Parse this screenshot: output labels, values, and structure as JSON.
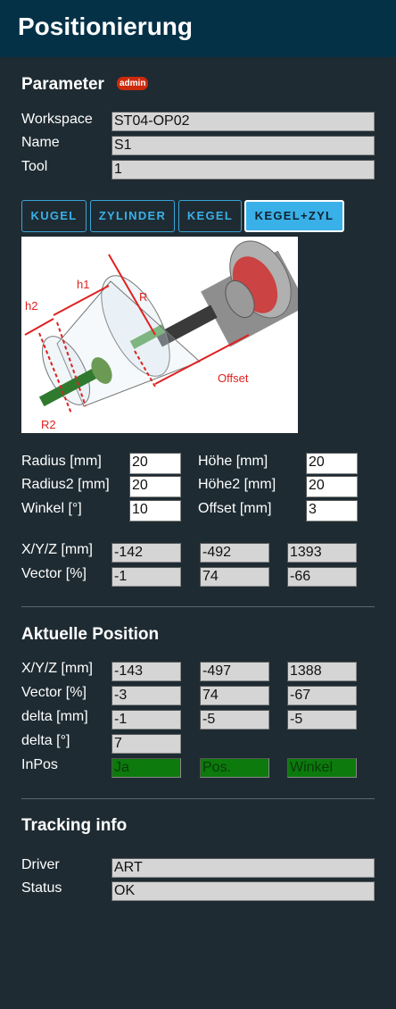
{
  "header": {
    "title": "Positionierung"
  },
  "parameter": {
    "title": "Parameter",
    "badge": "admin",
    "workspace_label": "Workspace",
    "workspace_value": "ST04-OP02",
    "name_label": "Name",
    "name_value": "S1",
    "tool_label": "Tool",
    "tool_value": "1"
  },
  "shape_buttons": [
    "KUGEL",
    "ZYLINDER",
    "KEGEL",
    "KEGEL+ZYL"
  ],
  "active_shape": "KEGEL+ZYL",
  "figure": {
    "labels": {
      "h1": "h1",
      "h2": "h2",
      "r": "R",
      "r2": "R2",
      "offset": "Offset"
    }
  },
  "dimensions": {
    "radius_label": "Radius [mm]",
    "radius_value": "20",
    "hoehe_label": "Höhe [mm]",
    "hoehe_value": "20",
    "radius2_label": "Radius2 [mm]",
    "radius2_value": "20",
    "hoehe2_label": "Höhe2 [mm]",
    "hoehe2_value": "20",
    "winkel_label": "Winkel [°]",
    "winkel_value": "10",
    "offset_label": "Offset [mm]",
    "offset_value": "3"
  },
  "target": {
    "xyz_label": "X/Y/Z [mm]",
    "xyz": [
      "-142",
      "-492",
      "1393"
    ],
    "vector_label": "Vector [%]",
    "vector": [
      "-1",
      "74",
      "-66"
    ]
  },
  "aktuell": {
    "title": "Aktuelle Position",
    "xyz_label": "X/Y/Z [mm]",
    "xyz": [
      "-143",
      "-497",
      "1388"
    ],
    "vector_label": "Vector [%]",
    "vector": [
      "-3",
      "74",
      "-67"
    ],
    "delta_mm_label": "delta [mm]",
    "delta_mm": [
      "-1",
      "-5",
      "-5"
    ],
    "delta_deg_label": "delta [°]",
    "delta_deg": "7",
    "inpos_label": "InPos",
    "inpos": [
      "Ja",
      "Pos.",
      "Winkel"
    ],
    "inpos_color": "#0c7a0c"
  },
  "tracking": {
    "title": "Tracking info",
    "driver_label": "Driver",
    "driver_value": "ART",
    "status_label": "Status",
    "status_value": "OK"
  },
  "colors": {
    "header_bg": "#053147",
    "page_bg": "#1e2b32",
    "accent": "#3ab0e8",
    "badge": "#cc2a0c"
  }
}
